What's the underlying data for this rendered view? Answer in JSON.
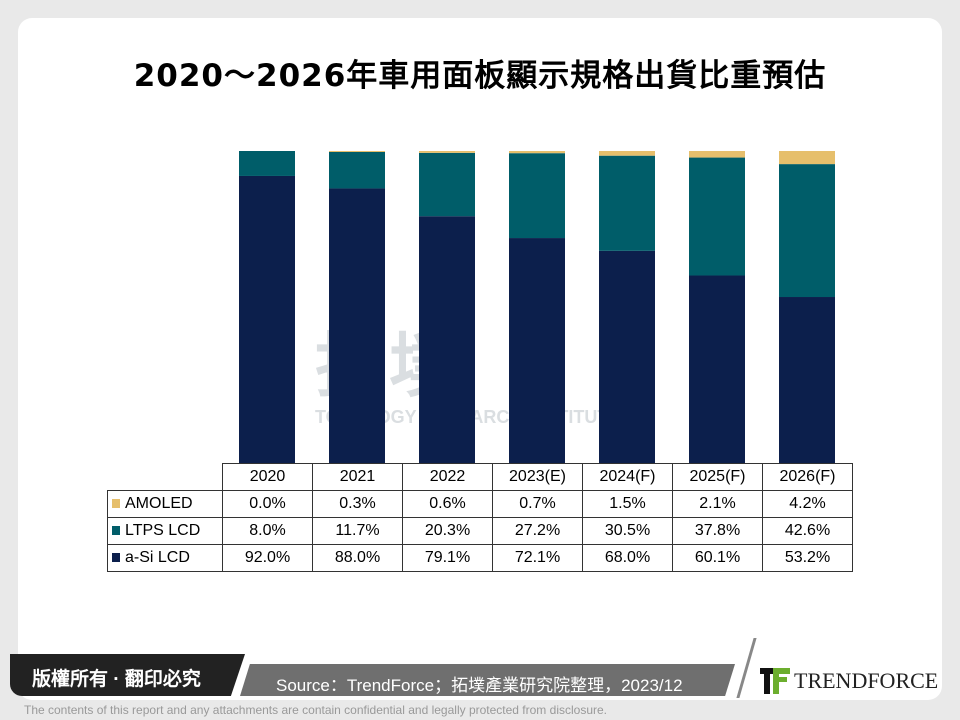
{
  "title": "2020～2026年車用面板顯示規格出貨比重預估",
  "watermark": {
    "cn": "拓墣",
    "en": "TOPOLOGY RESEARCH INSTITUTE"
  },
  "chart_data": {
    "type": "bar",
    "stacked": true,
    "categories": [
      "2020",
      "2021",
      "2022",
      "2023(E)",
      "2024(F)",
      "2025(F)",
      "2026(F)"
    ],
    "ylim": [
      0,
      100
    ],
    "series": [
      {
        "name": "a-Si LCD",
        "color": "#0c1f4c",
        "values": [
          92.0,
          88.0,
          79.1,
          72.1,
          68.0,
          60.1,
          53.2
        ],
        "labels": [
          "92.0%",
          "88.0%",
          "79.1%",
          "72.1%",
          "68.0%",
          "60.1%",
          "53.2%"
        ]
      },
      {
        "name": "LTPS LCD",
        "color": "#005d69",
        "values": [
          8.0,
          11.7,
          20.3,
          27.2,
          30.5,
          37.8,
          42.6
        ],
        "labels": [
          "8.0%",
          "11.7%",
          "20.3%",
          "27.2%",
          "30.5%",
          "37.8%",
          "42.6%"
        ]
      },
      {
        "name": "AMOLED",
        "color": "#e6bf6c",
        "values": [
          0.0,
          0.3,
          0.6,
          0.7,
          1.5,
          2.1,
          4.2
        ],
        "labels": [
          "0.0%",
          "0.3%",
          "0.6%",
          "0.7%",
          "1.5%",
          "2.1%",
          "4.2%"
        ]
      }
    ],
    "table_order": [
      2,
      1,
      0
    ]
  },
  "footer": {
    "copyright": "版權所有 · 翻印必究",
    "source": "Source：TrendForce；拓墣產業研究院整理，2023/12",
    "logo": "TrendForce",
    "disclaimer": "The contents of this report and any attachments are contain confidential and legally protected from disclosure."
  }
}
